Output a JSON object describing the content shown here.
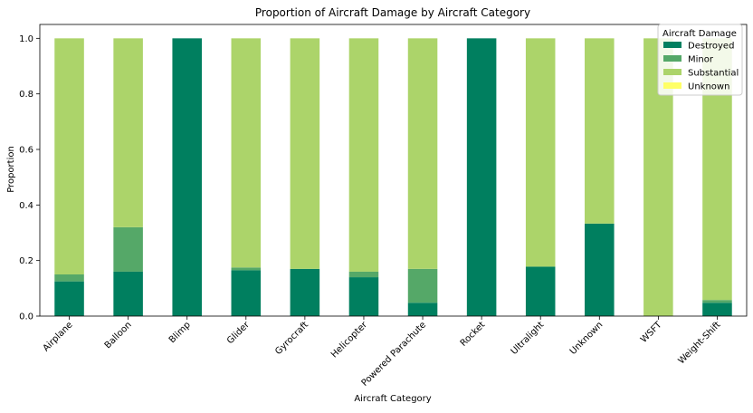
{
  "chart_data": {
    "type": "bar",
    "stacked": true,
    "title": "Proportion of Aircraft Damage by Aircraft Category",
    "xlabel": "Aircraft Category",
    "ylabel": "Proportion",
    "ylim": [
      0,
      1.05
    ],
    "yticks": [
      "0.0",
      "0.2",
      "0.4",
      "0.6",
      "0.8",
      "1.0"
    ],
    "categories": [
      "Airplane",
      "Balloon",
      "Blimp",
      "Glider",
      "Gyrocraft",
      "Helicopter",
      "Powered Parachute",
      "Rocket",
      "Ultralight",
      "Unknown",
      "WSFT",
      "Weight-Shift"
    ],
    "series": [
      {
        "name": "Destroyed",
        "color": "#007f5f",
        "values": [
          0.125,
          0.16,
          1.0,
          0.165,
          0.17,
          0.14,
          0.048,
          1.0,
          0.178,
          0.333,
          0.0,
          0.048
        ]
      },
      {
        "name": "Minor",
        "color": "#55a868",
        "values": [
          0.025,
          0.16,
          0.0,
          0.01,
          0.0,
          0.02,
          0.122,
          0.0,
          0.0,
          0.0,
          0.0,
          0.01
        ]
      },
      {
        "name": "Substantial",
        "color": "#acd46a",
        "values": [
          0.85,
          0.68,
          0.0,
          0.825,
          0.83,
          0.84,
          0.83,
          0.0,
          0.822,
          0.667,
          1.0,
          0.942
        ]
      },
      {
        "name": "Unknown",
        "color": "#ffff66",
        "values": [
          0.0,
          0.0,
          0.0,
          0.0,
          0.0,
          0.0,
          0.0,
          0.0,
          0.0,
          0.0,
          0.0,
          0.0
        ]
      }
    ],
    "legend": {
      "title": "Aircraft Damage",
      "placement": "top-right"
    },
    "grid": false
  }
}
